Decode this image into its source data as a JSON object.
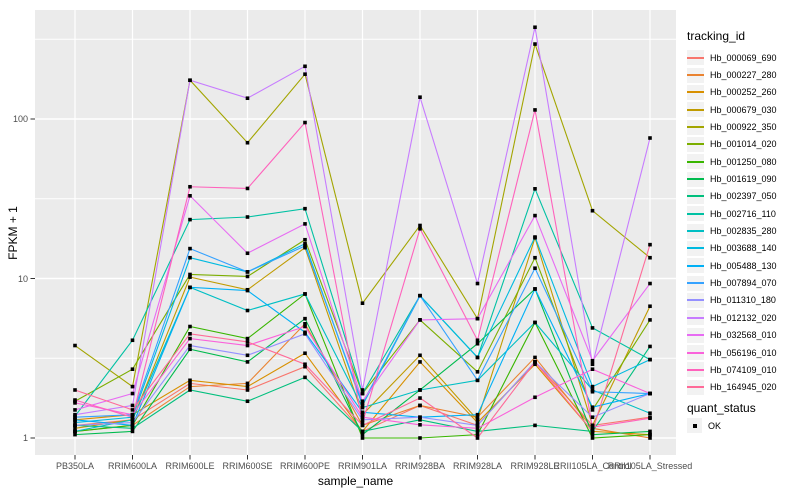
{
  "legend": {
    "tracking_title": "tracking_id",
    "quant_title": "quant_status",
    "ok_label": "OK"
  },
  "colors": {
    "panel_background": "#EBEBEB",
    "gridline": "#FFFFFF",
    "tick_text": "#4D4D4D",
    "axis_tick_mark": "#333333",
    "point": "#000000",
    "legend_key_background": "#F2F2F2"
  },
  "chart_data": {
    "type": "line",
    "title": "",
    "xlabel": "sample_name",
    "ylabel": "FPKM + 1",
    "y_scale": "log10",
    "y_ticks": [
      1,
      10,
      100
    ],
    "y_tick_labels": [
      "1",
      "10",
      "100"
    ],
    "y_minor_gridlines": [
      3.162,
      31.623,
      316.228
    ],
    "ylim": [
      0.78,
      470
    ],
    "grid": true,
    "legend_position": "right",
    "point_marker": "square",
    "categories": [
      "PB350LA",
      "RRIM600LA",
      "RRIM600LE",
      "RRIM600SE",
      "RRIM600PE",
      "RRIM901LA",
      "RRIM928BA",
      "RRIM928LA",
      "RRIM928LE",
      "RRII105LA_Control",
      "RRII105LA_Stressed"
    ],
    "series": [
      {
        "name": "Hb_000069_690",
        "color": "#F8766D",
        "values": [
          1.2,
          1.3,
          2.2,
          2.0,
          2.8,
          1.1,
          1.6,
          1.2,
          3.0,
          1.2,
          1.35
        ]
      },
      {
        "name": "Hb_000227_280",
        "color": "#EA8331",
        "values": [
          1.1,
          1.2,
          2.1,
          2.2,
          5.2,
          1.2,
          1.6,
          1.35,
          3.2,
          1.15,
          1.0
        ]
      },
      {
        "name": "Hb_000252_260",
        "color": "#D89000",
        "values": [
          1.3,
          1.4,
          2.3,
          2.1,
          3.4,
          1.1,
          3.0,
          1.25,
          2.9,
          1.1,
          1.05
        ]
      },
      {
        "name": "Hb_000679_030",
        "color": "#C09B00",
        "values": [
          1.15,
          1.3,
          10.2,
          8.5,
          15.6,
          1.4,
          3.3,
          1.3,
          18.0,
          1.2,
          6.7
        ]
      },
      {
        "name": "Hb_000922_350",
        "color": "#A3A500",
        "values": [
          3.8,
          2.1,
          175,
          71,
          191,
          7.0,
          21.5,
          5.6,
          295,
          26.6,
          13.5
        ]
      },
      {
        "name": "Hb_001014_020",
        "color": "#7CAE00",
        "values": [
          1.7,
          2.7,
          10.6,
          10.3,
          17.5,
          1.9,
          5.5,
          2.6,
          13.5,
          1.5,
          5.5
        ]
      },
      {
        "name": "Hb_001250_080",
        "color": "#39B600",
        "values": [
          1.1,
          1.2,
          5.0,
          4.2,
          8.0,
          1.0,
          1.0,
          1.05,
          5.3,
          1.0,
          1.05
        ]
      },
      {
        "name": "Hb_001619_090",
        "color": "#00BB4E",
        "values": [
          1.05,
          1.1,
          3.6,
          3.0,
          5.6,
          1.05,
          2.0,
          3.9,
          8.6,
          1.05,
          1.1
        ]
      },
      {
        "name": "Hb_002397_050",
        "color": "#00BF7D",
        "values": [
          1.2,
          1.15,
          2.0,
          1.7,
          2.4,
          1.1,
          1.3,
          1.1,
          1.2,
          1.1,
          3.75
        ]
      },
      {
        "name": "Hb_002716_110",
        "color": "#00C1A3",
        "values": [
          1.37,
          4.1,
          23.4,
          24.3,
          27.4,
          1.9,
          7.8,
          3.2,
          36.5,
          4.9,
          3.1
        ]
      },
      {
        "name": "Hb_002835_280",
        "color": "#00BFC4",
        "values": [
          1.1,
          1.3,
          8.8,
          6.3,
          8.0,
          1.55,
          2.0,
          2.3,
          5.3,
          2.0,
          1.43
        ]
      },
      {
        "name": "Hb_003688_140",
        "color": "#00BAE0",
        "values": [
          1.25,
          1.35,
          13.5,
          11.0,
          16.5,
          1.6,
          7.8,
          3.2,
          18.2,
          2.1,
          3.1
        ]
      },
      {
        "name": "Hb_005488_130",
        "color": "#00B0F6",
        "values": [
          1.3,
          1.2,
          8.8,
          8.4,
          4.6,
          1.45,
          1.35,
          1.4,
          8.6,
          1.56,
          1.9
        ]
      },
      {
        "name": "Hb_007894_070",
        "color": "#35A2FF",
        "values": [
          1.35,
          1.4,
          15.4,
          11.0,
          16.0,
          1.65,
          7.8,
          2.3,
          11.6,
          1.95,
          1.9
        ]
      },
      {
        "name": "Hb_011310_180",
        "color": "#9590FF",
        "values": [
          1.2,
          1.25,
          3.8,
          3.3,
          4.5,
          1.3,
          1.35,
          1.2,
          3.0,
          1.35,
          1.9
        ]
      },
      {
        "name": "Hb_012132_020",
        "color": "#C77CFF",
        "values": [
          1.4,
          1.6,
          175,
          135,
          214,
          2.0,
          137,
          9.3,
          376,
          2.9,
          76
        ]
      },
      {
        "name": "Hb_032568_010",
        "color": "#E76BF3",
        "values": [
          1.5,
          1.9,
          33,
          14.4,
          22,
          1.7,
          5.5,
          5.6,
          24.8,
          3.05,
          9.3
        ]
      },
      {
        "name": "Hb_056196_010",
        "color": "#FA62DB",
        "values": [
          1.66,
          1.4,
          4.2,
          3.8,
          5.0,
          1.35,
          1.21,
          1.15,
          1.8,
          2.7,
          1.9
        ]
      },
      {
        "name": "Hb_074109_010",
        "color": "#FF62BC",
        "values": [
          1.73,
          1.35,
          37.6,
          36.7,
          95,
          1.25,
          20.5,
          4.1,
          114,
          1.17,
          1.33
        ]
      },
      {
        "name": "Hb_164945_020",
        "color": "#FF6A98",
        "values": [
          2.0,
          1.5,
          4.5,
          4.0,
          2.9,
          1.2,
          1.78,
          1.0,
          3.0,
          1.1,
          16.3
        ]
      }
    ],
    "quant_status_values": [
      "OK"
    ]
  }
}
